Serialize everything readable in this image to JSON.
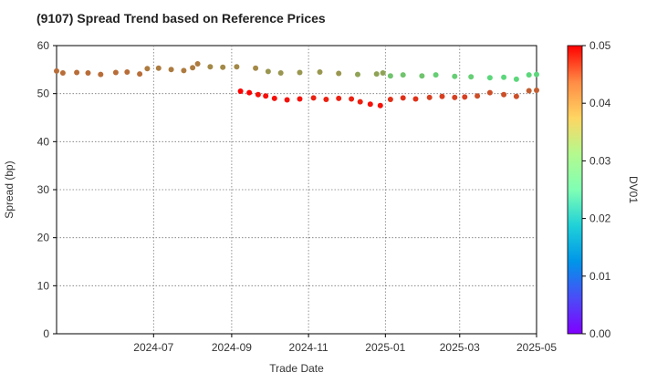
{
  "chart_data": {
    "type": "scatter",
    "title": "(9107)   Spread Trend based on Reference Prices",
    "xlabel": "Trade Date",
    "ylabel": "Spread (bp)",
    "x_range": [
      "2024-04-15",
      "2025-05-01"
    ],
    "ylim": [
      0,
      60
    ],
    "x_ticks": [
      "2024-07",
      "2024-09",
      "2024-11",
      "2025-01",
      "2025-03",
      "2025-05"
    ],
    "y_ticks": [
      0,
      10,
      20,
      30,
      40,
      50,
      60
    ],
    "grid": true,
    "colorbar": {
      "label": "DV01",
      "range": [
        0.0,
        0.05
      ],
      "ticks": [
        "0.00",
        "0.01",
        "0.02",
        "0.03",
        "0.04",
        "0.05"
      ],
      "colormap": "rainbow"
    },
    "series": [
      {
        "points": [
          {
            "x": "2024-04-15",
            "y": 54.7,
            "c": 0.043
          },
          {
            "x": "2024-04-20",
            "y": 54.3,
            "c": 0.043
          },
          {
            "x": "2024-05-01",
            "y": 54.4,
            "c": 0.043
          },
          {
            "x": "2024-05-10",
            "y": 54.3,
            "c": 0.043
          },
          {
            "x": "2024-05-20",
            "y": 54.0,
            "c": 0.043
          },
          {
            "x": "2024-06-01",
            "y": 54.4,
            "c": 0.043
          },
          {
            "x": "2024-06-10",
            "y": 54.5,
            "c": 0.043
          },
          {
            "x": "2024-06-20",
            "y": 54.1,
            "c": 0.043
          },
          {
            "x": "2024-06-26",
            "y": 55.2,
            "c": 0.042
          },
          {
            "x": "2024-07-05",
            "y": 55.3,
            "c": 0.042
          },
          {
            "x": "2024-07-15",
            "y": 55.0,
            "c": 0.042
          },
          {
            "x": "2024-07-25",
            "y": 54.8,
            "c": 0.042
          },
          {
            "x": "2024-08-01",
            "y": 55.4,
            "c": 0.042
          },
          {
            "x": "2024-08-05",
            "y": 56.2,
            "c": 0.042
          },
          {
            "x": "2024-08-15",
            "y": 55.6,
            "c": 0.041
          },
          {
            "x": "2024-08-25",
            "y": 55.5,
            "c": 0.041
          },
          {
            "x": "2024-09-05",
            "y": 55.6,
            "c": 0.041
          },
          {
            "x": "2024-09-20",
            "y": 55.3,
            "c": 0.041
          },
          {
            "x": "2024-09-30",
            "y": 54.6,
            "c": 0.04
          },
          {
            "x": "2024-10-10",
            "y": 54.3,
            "c": 0.04
          },
          {
            "x": "2024-10-25",
            "y": 54.4,
            "c": 0.04
          },
          {
            "x": "2024-11-10",
            "y": 54.5,
            "c": 0.04
          },
          {
            "x": "2024-11-25",
            "y": 54.2,
            "c": 0.04
          },
          {
            "x": "2024-12-10",
            "y": 54.0,
            "c": 0.039
          },
          {
            "x": "2024-12-25",
            "y": 54.1,
            "c": 0.039
          },
          {
            "x": "2024-12-30",
            "y": 54.3,
            "c": 0.039
          },
          {
            "x": "2025-01-05",
            "y": 53.7,
            "c": 0.036
          },
          {
            "x": "2025-01-15",
            "y": 53.9,
            "c": 0.036
          },
          {
            "x": "2025-01-30",
            "y": 53.7,
            "c": 0.036
          },
          {
            "x": "2025-02-10",
            "y": 53.9,
            "c": 0.035
          },
          {
            "x": "2025-02-25",
            "y": 53.6,
            "c": 0.035
          },
          {
            "x": "2025-03-10",
            "y": 53.5,
            "c": 0.035
          },
          {
            "x": "2025-03-25",
            "y": 53.3,
            "c": 0.034
          },
          {
            "x": "2025-04-05",
            "y": 53.4,
            "c": 0.034
          },
          {
            "x": "2025-04-15",
            "y": 53.0,
            "c": 0.034
          },
          {
            "x": "2025-04-25",
            "y": 53.9,
            "c": 0.034
          },
          {
            "x": "2025-05-01",
            "y": 54.0,
            "c": 0.034
          }
        ]
      },
      {
        "points": [
          {
            "x": "2024-09-08",
            "y": 50.5,
            "c": 0.05
          },
          {
            "x": "2024-09-15",
            "y": 50.2,
            "c": 0.05
          },
          {
            "x": "2024-09-22",
            "y": 49.8,
            "c": 0.049
          },
          {
            "x": "2024-09-28",
            "y": 49.5,
            "c": 0.049
          },
          {
            "x": "2024-10-05",
            "y": 49.0,
            "c": 0.049
          },
          {
            "x": "2024-10-15",
            "y": 48.7,
            "c": 0.049
          },
          {
            "x": "2024-10-25",
            "y": 48.9,
            "c": 0.049
          },
          {
            "x": "2024-11-05",
            "y": 49.1,
            "c": 0.048
          },
          {
            "x": "2024-11-15",
            "y": 48.8,
            "c": 0.048
          },
          {
            "x": "2024-11-25",
            "y": 49.0,
            "c": 0.048
          },
          {
            "x": "2024-12-05",
            "y": 48.9,
            "c": 0.048
          },
          {
            "x": "2024-12-12",
            "y": 48.3,
            "c": 0.048
          },
          {
            "x": "2024-12-20",
            "y": 47.8,
            "c": 0.049
          },
          {
            "x": "2024-12-28",
            "y": 47.5,
            "c": 0.049
          },
          {
            "x": "2025-01-05",
            "y": 48.8,
            "c": 0.047
          },
          {
            "x": "2025-01-15",
            "y": 49.1,
            "c": 0.047
          },
          {
            "x": "2025-01-25",
            "y": 48.9,
            "c": 0.047
          },
          {
            "x": "2025-02-05",
            "y": 49.2,
            "c": 0.046
          },
          {
            "x": "2025-02-15",
            "y": 49.4,
            "c": 0.046
          },
          {
            "x": "2025-02-25",
            "y": 49.2,
            "c": 0.046
          },
          {
            "x": "2025-03-05",
            "y": 49.3,
            "c": 0.046
          },
          {
            "x": "2025-03-15",
            "y": 49.5,
            "c": 0.045
          },
          {
            "x": "2025-03-25",
            "y": 50.2,
            "c": 0.045
          },
          {
            "x": "2025-04-05",
            "y": 49.8,
            "c": 0.045
          },
          {
            "x": "2025-04-15",
            "y": 49.4,
            "c": 0.045
          },
          {
            "x": "2025-04-25",
            "y": 50.6,
            "c": 0.044
          },
          {
            "x": "2025-05-01",
            "y": 50.7,
            "c": 0.044
          }
        ]
      }
    ]
  }
}
